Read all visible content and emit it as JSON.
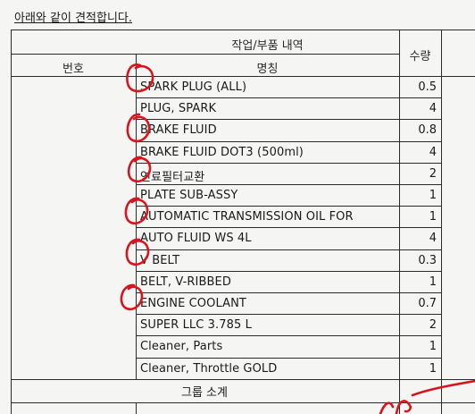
{
  "document": {
    "title": "아래와 같이 견적합니다."
  },
  "table": {
    "group_header": "작업/부품 내역",
    "columns": {
      "number": "번호",
      "name": "명칭",
      "quantity": "수량"
    },
    "rows": [
      {
        "name": "SPARK PLUG (ALL)",
        "qty": "0.5"
      },
      {
        "name": "PLUG, SPARK",
        "qty": "4"
      },
      {
        "name": "BRAKE FLUID",
        "qty": "0.8"
      },
      {
        "name": "BRAKE FLUID DOT3 (500ml)",
        "qty": "4"
      },
      {
        "name": "연료필터교환",
        "qty": "2"
      },
      {
        "name": "PLATE SUB-ASSY",
        "qty": "1"
      },
      {
        "name": "AUTOMATIC TRANSMISSION OIL FOR",
        "qty": "1"
      },
      {
        "name": "AUTO FLUID WS 4L",
        "qty": "4"
      },
      {
        "name": "V BELT",
        "qty": "0.3"
      },
      {
        "name": "BELT, V-RIBBED",
        "qty": "1"
      },
      {
        "name": "ENGINE COOLANT",
        "qty": "0.7"
      },
      {
        "name": "SUPER LLC 3.785 L",
        "qty": "2"
      },
      {
        "name": "Cleaner, Parts",
        "qty": "1"
      },
      {
        "name": "Cleaner, Throttle GOLD",
        "qty": "1"
      }
    ],
    "subtotal_label": "그룹 소계"
  },
  "annotation_color": "#d8141e"
}
